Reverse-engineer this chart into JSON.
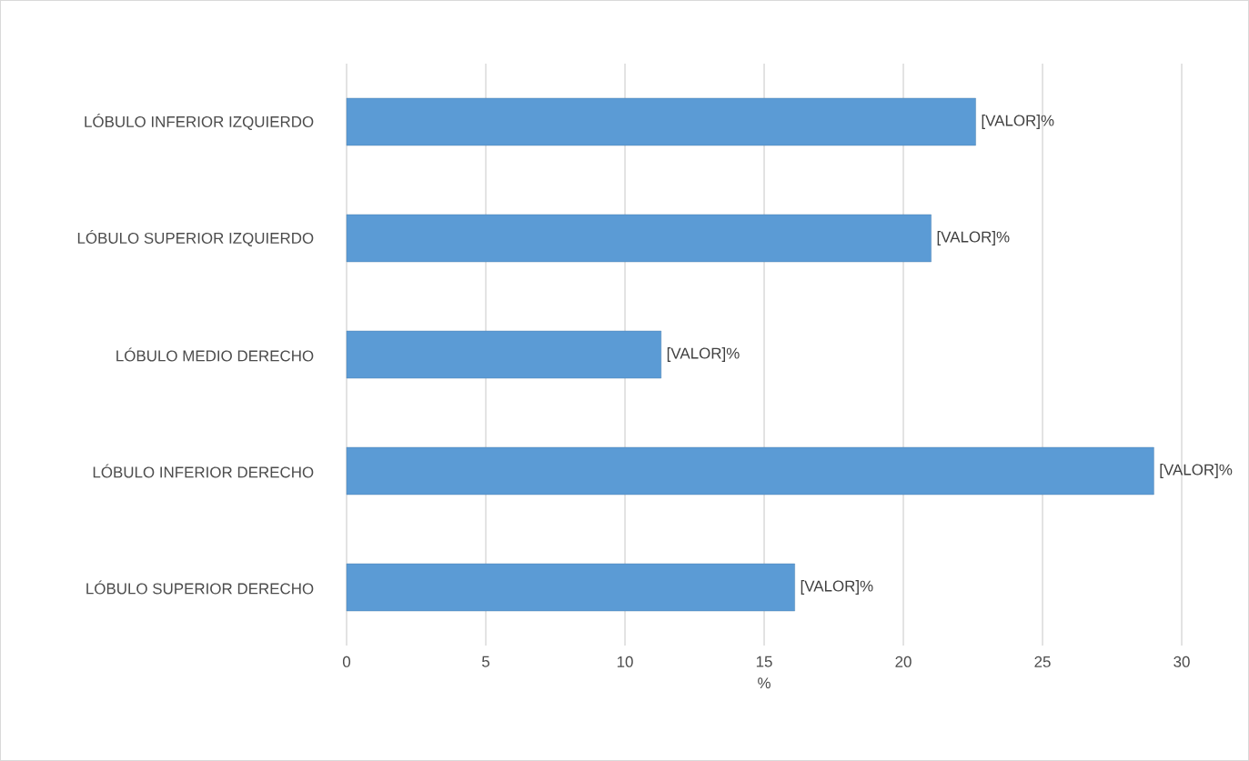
{
  "chart_data": {
    "type": "bar",
    "orientation": "horizontal",
    "xlabel": "%",
    "categories": [
      "LÓBULO INFERIOR IZQUIERDO",
      "LÓBULO SUPERIOR IZQUIERDO",
      "LÓBULO MEDIO DERECHO",
      "LÓBULO INFERIOR DERECHO",
      "LÓBULO SUPERIOR DERECHO"
    ],
    "values": [
      22.6,
      21.0,
      11.3,
      29.0,
      16.1
    ],
    "value_labels": [
      "[VALOR]%",
      "[VALOR]%",
      "[VALOR]%",
      "[VALOR]%",
      "[VALOR]%"
    ],
    "color": "#5b9bd5",
    "xlim": [
      0,
      30
    ],
    "xticks": [
      0,
      5,
      10,
      15,
      20,
      25,
      30
    ],
    "grid": "x"
  }
}
